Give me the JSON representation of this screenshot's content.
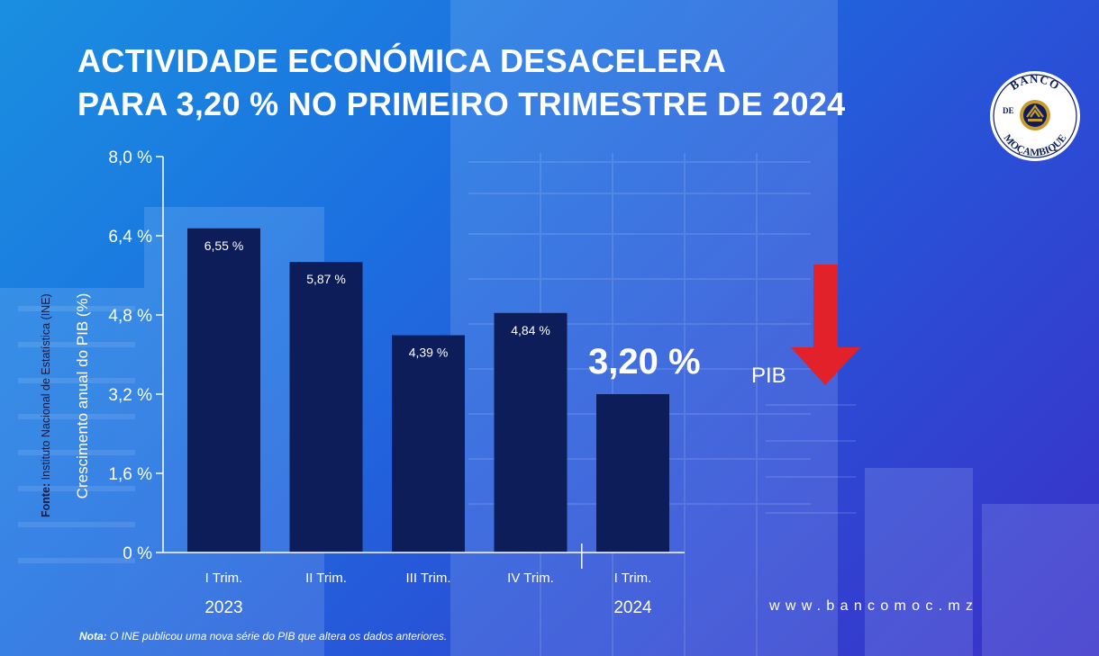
{
  "title_line1": "ACTIVIDADE ECONÓMICA DESACELERA",
  "title_line2": "PARA 3,20 % NO PRIMEIRO TRIMESTRE DE 2024",
  "logo": {
    "top_text": "BANCO",
    "middle_text": "DE",
    "bottom_text": "MOÇAMBIQUE"
  },
  "source_label": "Fonte:",
  "source_text": "Instituto Nacional de Estatística (INE)",
  "website": "www.bancomoc.mz",
  "note_label": "Nota:",
  "note_text": "O INE publicou uma nova série do PIB que altera os dados anteriores.",
  "highlight_value": "3,20 %",
  "highlight_label": "PIB",
  "colors": {
    "bar": "#0c1d5a",
    "arrow": "#e3212b",
    "text": "#ffffff"
  },
  "icons": [
    "down-arrow-icon",
    "bank-logo"
  ],
  "chart_data": {
    "type": "bar",
    "ylabel": "Crescimento anual do PIB (%)",
    "ylim": [
      0,
      8.0
    ],
    "yticks": [
      0,
      1.6,
      3.2,
      4.8,
      6.4,
      8.0
    ],
    "ytick_labels": [
      "0 %",
      "1,6 %",
      "3,2 %",
      "4,8 %",
      "6,4 %",
      "8,0 %"
    ],
    "categories": [
      "I Trim.",
      "II Trim.",
      "III Trim.",
      "IV Trim.",
      "I Trim."
    ],
    "years": [
      {
        "label": "2023",
        "categories": [
          0,
          1,
          2,
          3
        ]
      },
      {
        "label": "2024",
        "categories": [
          4
        ]
      }
    ],
    "values": [
      6.55,
      5.87,
      4.39,
      4.84,
      3.2
    ],
    "data_labels": [
      "6,55 %",
      "5,87 %",
      "4,39 %",
      "4,84 %",
      "3,20 %"
    ],
    "grid": false
  }
}
